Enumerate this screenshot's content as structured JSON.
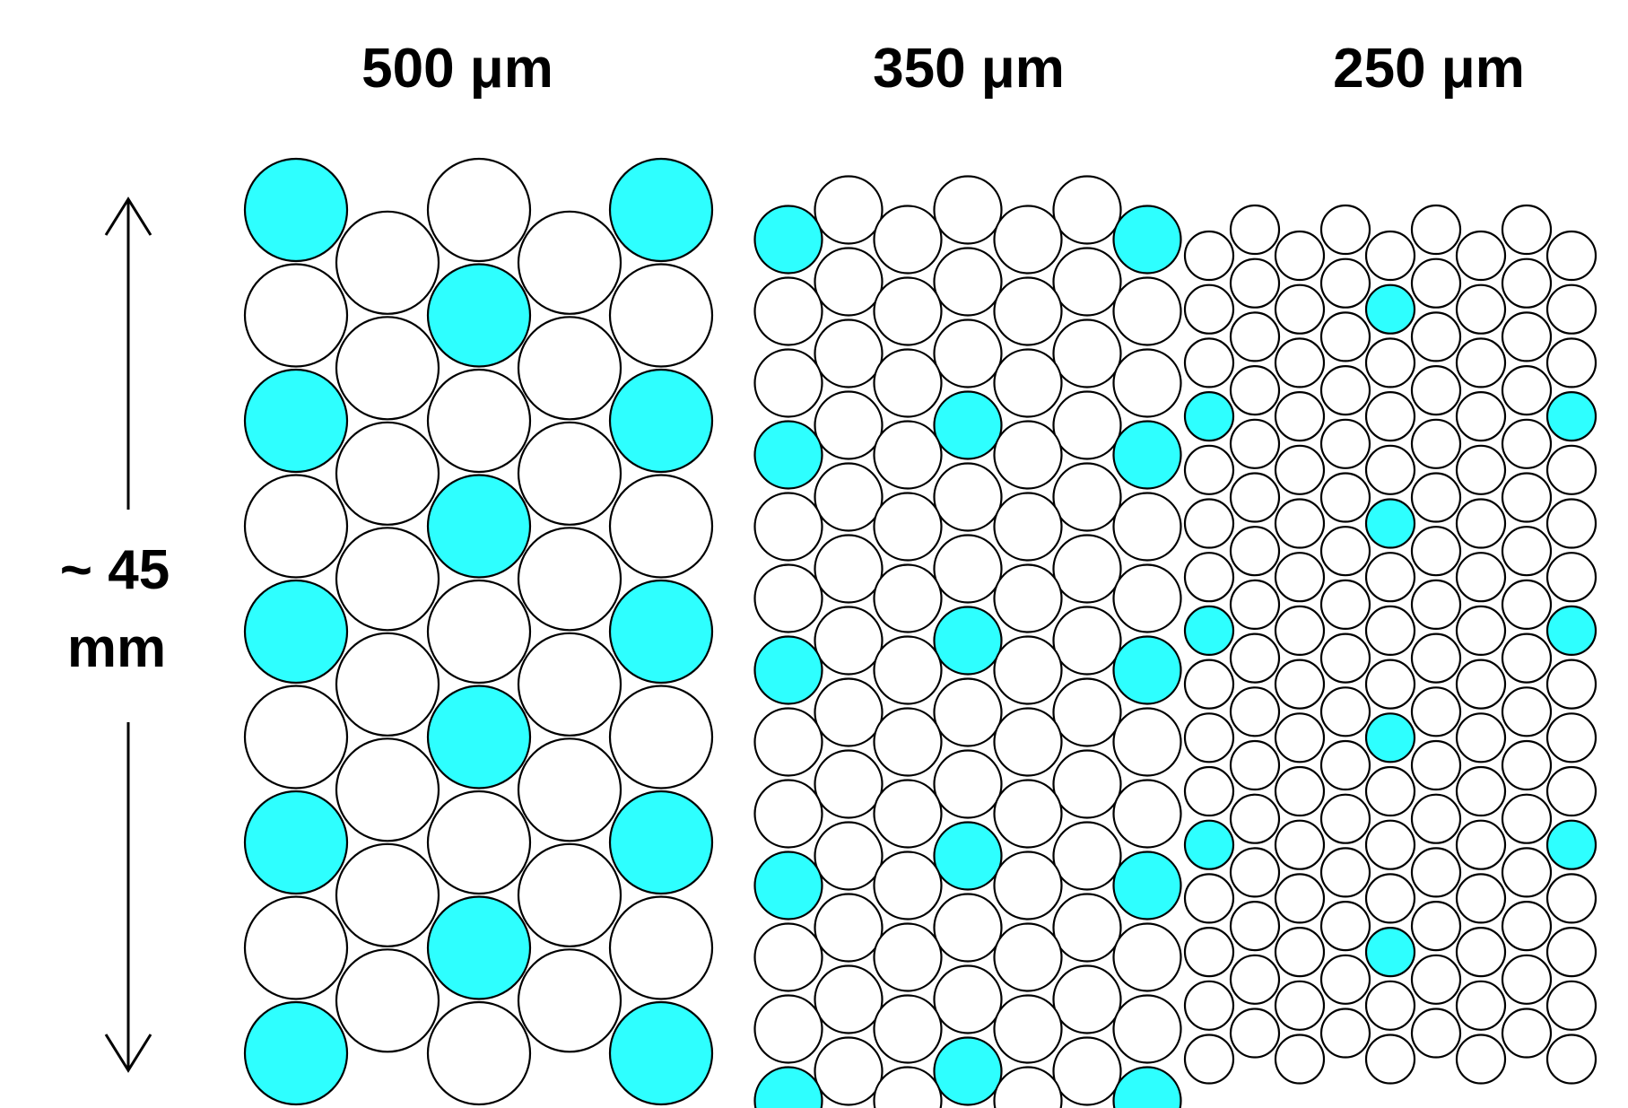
{
  "titles": {
    "panel_1": "500 μm",
    "panel_2": "350 μm",
    "panel_3": "250 μm"
  },
  "dimension": {
    "line_1": "~ 45",
    "line_2": "mm"
  },
  "colors": {
    "highlight": "#2effff",
    "fiber_fill": "#ffffff",
    "outline": "#000000"
  },
  "panels": [
    {
      "id": "500um",
      "odd_columns": 3,
      "even_columns": 2,
      "odd_rows": 9,
      "even_rows": 8,
      "highlighted": "corners of left/right columns every 2nd row and the middle column on alternate rows"
    },
    {
      "id": "350um",
      "odd_columns": 4,
      "even_columns": 3,
      "odd_rows": 13,
      "even_rows": 13,
      "highlighted": "edge columns every 3rd row and the middle column on alternate sets"
    },
    {
      "id": "250um",
      "odd_columns": 5,
      "even_columns": 4,
      "odd_rows": 16,
      "even_rows": 16,
      "highlighted": "edge columns every 4th row and the middle column on alternate sets"
    }
  ]
}
